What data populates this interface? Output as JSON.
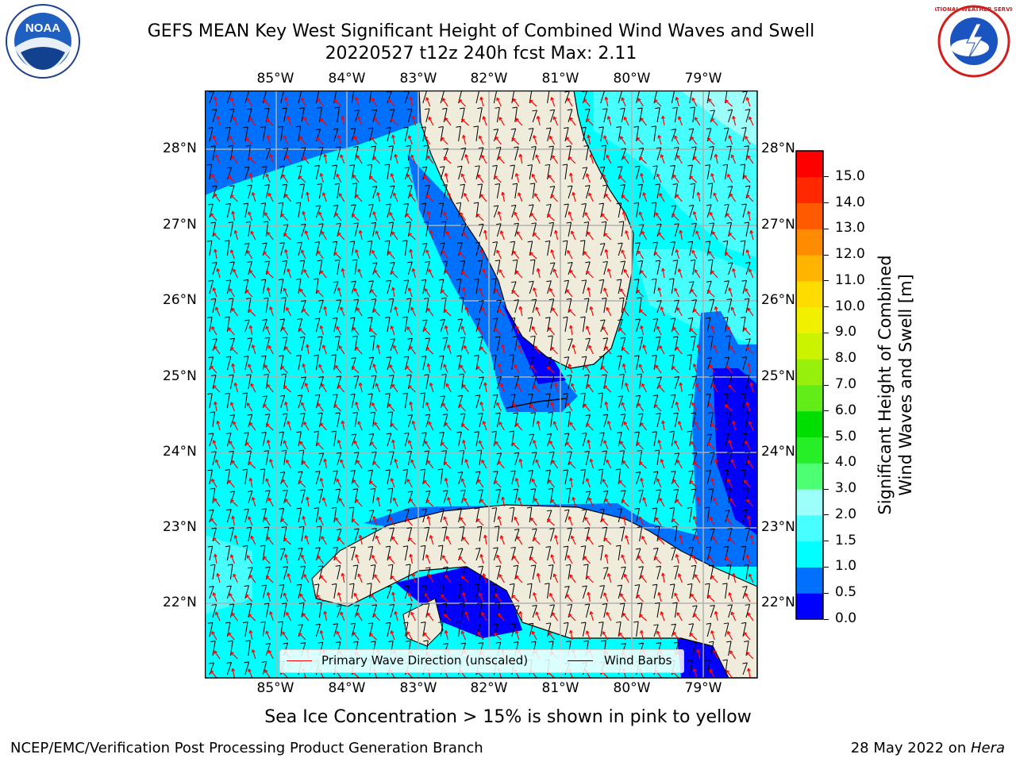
{
  "title": {
    "line1": "GEFS MEAN Key West Significant Height of Combined Wind Waves and Swell",
    "line2": "20220527 t12z 240h fcst   Max: 2.11"
  },
  "logos": {
    "noaa_text": "NOAA",
    "nws_text": "NATIONAL WEATHER SERVICE"
  },
  "map": {
    "lon_labels": [
      "85°W",
      "84°W",
      "83°W",
      "82°W",
      "81°W",
      "80°W",
      "79°W"
    ],
    "lat_labels": [
      "28°N",
      "27°N",
      "26°N",
      "25°N",
      "24°N",
      "23°N",
      "22°N"
    ],
    "land_color": "#efecdc",
    "grid_color": "#b0b0b0",
    "coast_color": "#000000",
    "barb_color": "#000000",
    "arrow_color": "#ff0000"
  },
  "legend": {
    "wave_direction_label": "Primary Wave Direction (unscaled)",
    "wind_barbs_label": "Wind Barbs"
  },
  "colorbar": {
    "label_line1": "Significant Height of Combined",
    "label_line2": "Wind Waves and Swell [m]",
    "ticks": [
      "0.0",
      "0.5",
      "1.0",
      "1.5",
      "2.0",
      "3.0",
      "4.0",
      "5.0",
      "6.0",
      "7.0",
      "8.0",
      "9.0",
      "10.0",
      "11.0",
      "12.0",
      "13.0",
      "14.0",
      "15.0"
    ],
    "colors": [
      "#0000ff",
      "#0070ff",
      "#00ffff",
      "#48ffff",
      "#9dfffa",
      "#4dff73",
      "#27ef27",
      "#00de00",
      "#62ec18",
      "#97f00c",
      "#cbf300",
      "#f0f000",
      "#ffdc00",
      "#ffb400",
      "#ff8c00",
      "#ff5a00",
      "#ff2800",
      "#ff0000"
    ]
  },
  "footer": {
    "ice_note": "Sea Ice Concentration > 15% is shown in pink to yellow",
    "left": "NCEP/EMC/Verification Post Processing Product Generation Branch",
    "right_date": "28 May 2022 on ",
    "right_host": "Hera"
  }
}
